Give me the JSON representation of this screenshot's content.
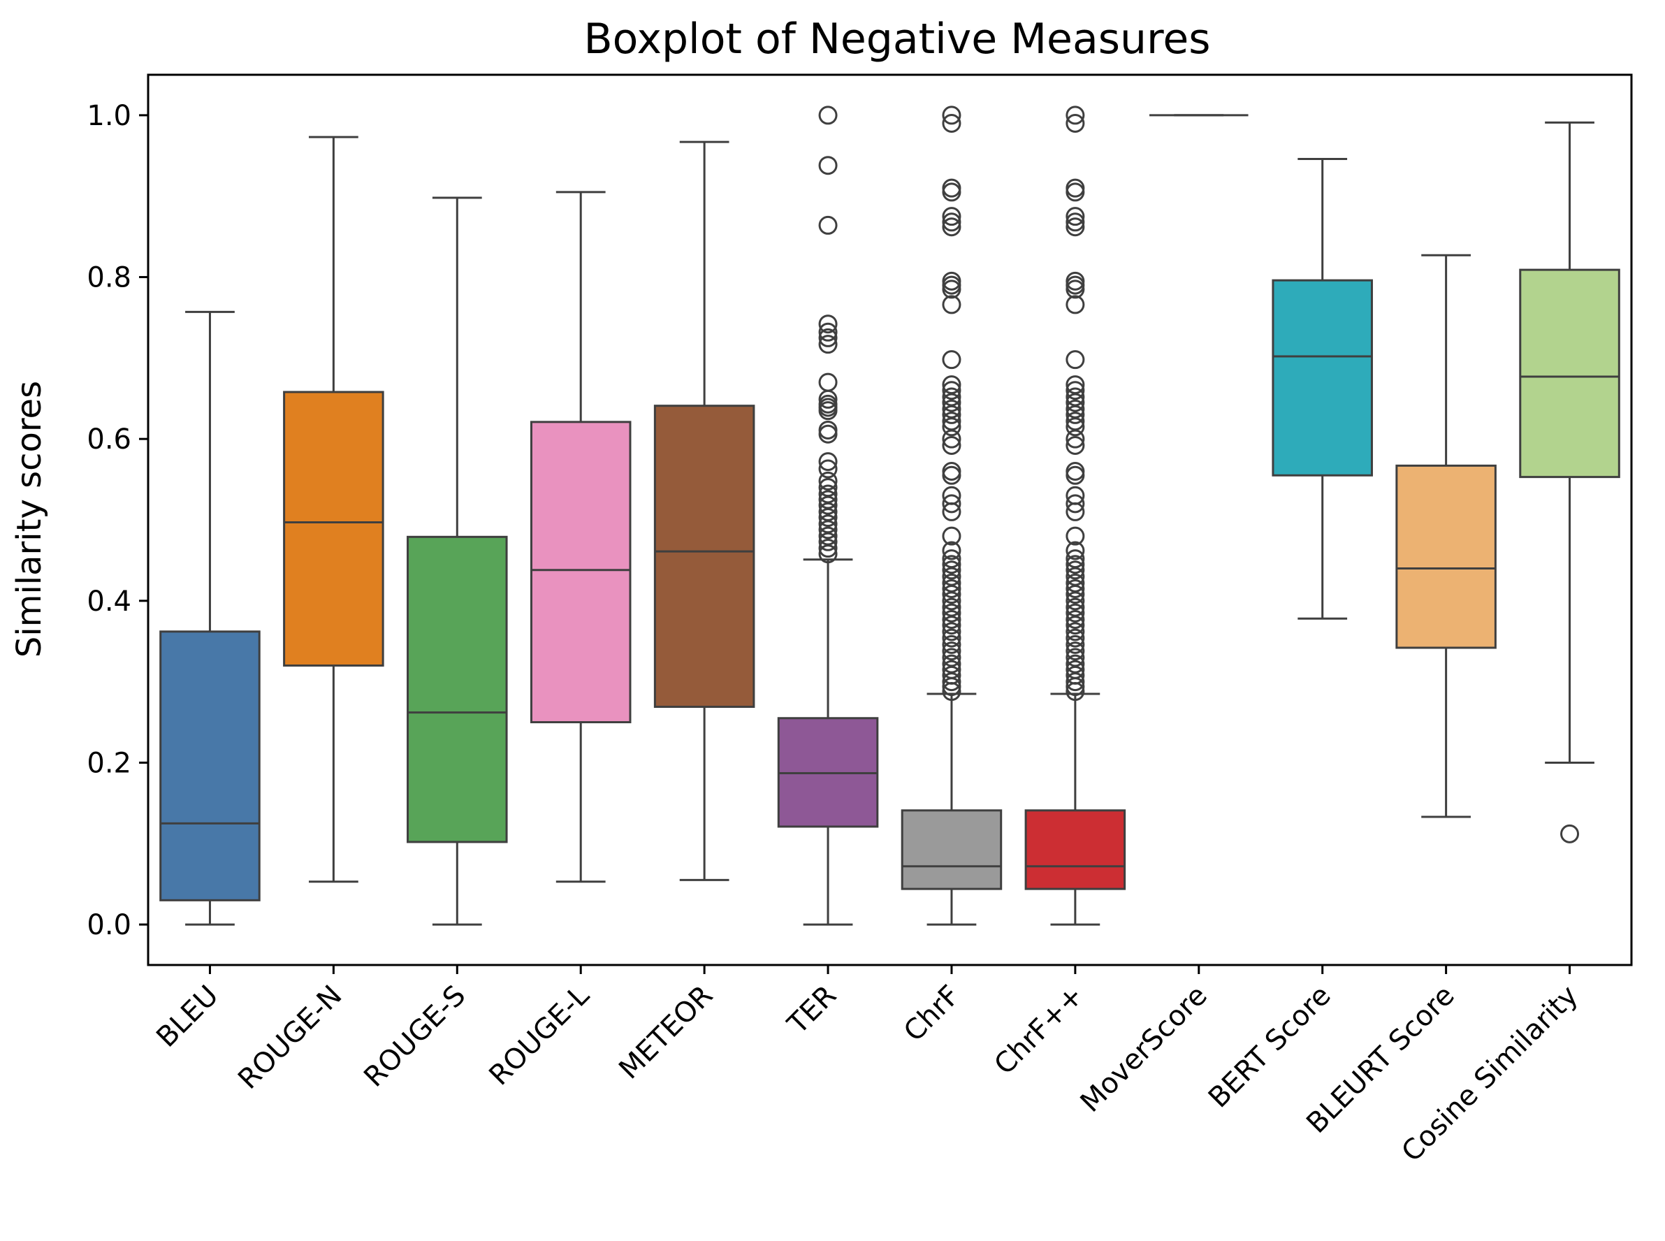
{
  "chart_data": {
    "type": "boxplot",
    "title": "Boxplot of Negative Measures",
    "xlabel": "",
    "ylabel": "Similarity scores",
    "ylim": [
      -0.05,
      1.05
    ],
    "yticks": [
      "0.0",
      "0.2",
      "0.4",
      "0.6",
      "0.8",
      "1.0"
    ],
    "grid": false,
    "categories": [
      "BLEU",
      "ROUGE-N",
      "ROUGE-S",
      "ROUGE-L",
      "METEOR",
      "TER",
      "ChrF",
      "ChrF++",
      "MoverScore",
      "BERT Score",
      "BLEURT Score",
      "Cosine Similarity"
    ],
    "boxes": [
      {
        "label": "BLEU",
        "color": "#4878a8",
        "whisker_low": 0.0,
        "q1": 0.03,
        "median": 0.125,
        "q3": 0.362,
        "whisker_high": 0.757,
        "outliers": []
      },
      {
        "label": "ROUGE-N",
        "color": "#e08020",
        "whisker_low": 0.053,
        "q1": 0.32,
        "median": 0.497,
        "q3": 0.658,
        "whisker_high": 0.973,
        "outliers": []
      },
      {
        "label": "ROUGE-S",
        "color": "#58a458",
        "whisker_low": 0.0,
        "q1": 0.102,
        "median": 0.262,
        "q3": 0.479,
        "whisker_high": 0.898,
        "outliers": []
      },
      {
        "label": "ROUGE-L",
        "color": "#e992bf",
        "whisker_low": 0.053,
        "q1": 0.25,
        "median": 0.438,
        "q3": 0.621,
        "whisker_high": 0.905,
        "outliers": []
      },
      {
        "label": "METEOR",
        "color": "#955b3a",
        "whisker_low": 0.055,
        "q1": 0.269,
        "median": 0.461,
        "q3": 0.641,
        "whisker_high": 0.967,
        "outliers": []
      },
      {
        "label": "TER",
        "color": "#8e5896",
        "whisker_low": 0.0,
        "q1": 0.121,
        "median": 0.187,
        "q3": 0.255,
        "whisker_high": 0.451,
        "outliers": [
          1.0,
          0.938,
          0.864,
          0.742,
          0.732,
          0.725,
          0.717,
          0.67,
          0.649,
          0.643,
          0.639,
          0.635,
          0.611,
          0.606,
          0.572,
          0.563,
          0.548,
          0.54,
          0.532,
          0.525,
          0.518,
          0.51,
          0.503,
          0.495,
          0.488,
          0.48,
          0.473,
          0.465,
          0.458
        ]
      },
      {
        "label": "ChrF",
        "color": "#9a9a9a",
        "whisker_low": 0.0,
        "q1": 0.044,
        "median": 0.072,
        "q3": 0.141,
        "whisker_high": 0.285,
        "outliers": [
          1.0,
          0.99,
          0.91,
          0.905,
          0.875,
          0.868,
          0.862,
          0.795,
          0.79,
          0.785,
          0.766,
          0.698,
          0.667,
          0.66,
          0.652,
          0.645,
          0.637,
          0.63,
          0.622,
          0.615,
          0.6,
          0.592,
          0.56,
          0.555,
          0.53,
          0.52,
          0.51,
          0.48,
          0.462,
          0.452,
          0.445,
          0.438,
          0.43,
          0.422,
          0.415,
          0.408,
          0.4,
          0.392,
          0.385,
          0.377,
          0.37,
          0.362,
          0.354,
          0.346,
          0.338,
          0.33,
          0.322,
          0.315,
          0.308,
          0.3,
          0.294,
          0.288
        ]
      },
      {
        "label": "ChrF++",
        "color": "#cc2e33",
        "whisker_low": 0.0,
        "q1": 0.044,
        "median": 0.072,
        "q3": 0.141,
        "whisker_high": 0.285,
        "outliers": [
          1.0,
          0.99,
          0.91,
          0.905,
          0.875,
          0.868,
          0.862,
          0.795,
          0.79,
          0.785,
          0.766,
          0.698,
          0.667,
          0.66,
          0.652,
          0.645,
          0.637,
          0.63,
          0.622,
          0.615,
          0.6,
          0.592,
          0.56,
          0.555,
          0.53,
          0.52,
          0.51,
          0.48,
          0.462,
          0.452,
          0.445,
          0.438,
          0.43,
          0.422,
          0.415,
          0.408,
          0.4,
          0.392,
          0.385,
          0.377,
          0.37,
          0.362,
          0.354,
          0.346,
          0.338,
          0.33,
          0.322,
          0.315,
          0.308,
          0.3,
          0.294,
          0.288
        ]
      },
      {
        "label": "MoverScore",
        "color": "#bcbd22",
        "whisker_low": 1.0,
        "q1": 1.0,
        "median": 1.0,
        "q3": 1.0,
        "whisker_high": 1.0,
        "outliers": []
      },
      {
        "label": "BERT Score",
        "color": "#2eabba",
        "whisker_low": 0.378,
        "q1": 0.555,
        "median": 0.702,
        "q3": 0.796,
        "whisker_high": 0.946,
        "outliers": []
      },
      {
        "label": "BLEURT Score",
        "color": "#ecb272",
        "whisker_low": 0.133,
        "q1": 0.342,
        "median": 0.44,
        "q3": 0.567,
        "whisker_high": 0.827,
        "outliers": []
      },
      {
        "label": "Cosine Similarity",
        "color": "#b2d38e",
        "whisker_low": 0.2,
        "q1": 0.553,
        "median": 0.677,
        "q3": 0.809,
        "whisker_high": 0.991,
        "outliers": [
          0.112
        ]
      }
    ]
  }
}
